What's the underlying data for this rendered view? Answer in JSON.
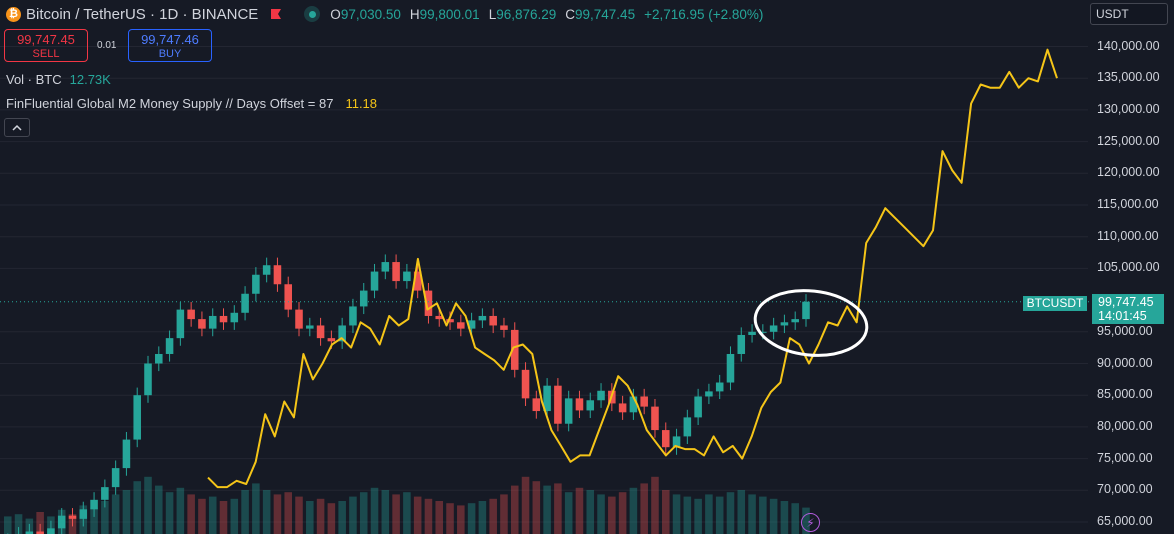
{
  "header": {
    "symbol": "Bitcoin / TetherUS · 1D · BINANCE",
    "open_label": "O",
    "open": "97,030.50",
    "high_label": "H",
    "high": "99,800.01",
    "low_label": "L",
    "low": "96,876.29",
    "close_label": "C",
    "close": "99,747.45",
    "change": "+2,716.95 (+2.80%)"
  },
  "trade": {
    "sell_price": "99,747.45",
    "sell_label": "SELL",
    "spread": "0.01",
    "buy_price": "99,747.46",
    "buy_label": "BUY"
  },
  "legend": {
    "volume_label": "Vol · BTC",
    "volume_value": "12.73K",
    "indicator_label": "FinFluential Global M2 Money Supply // Days Offset = 87",
    "indicator_value": "11.18",
    "collapse_icon": "chevron-up-icon"
  },
  "currency": "USDT",
  "price_scale": [
    "140,000.00",
    "135,000.00",
    "130,000.00",
    "125,000.00",
    "120,000.00",
    "115,000.00",
    "110,000.00",
    "105,000.00",
    "95,000.00",
    "90,000.00",
    "85,000.00",
    "80,000.00",
    "75,000.00",
    "70,000.00",
    "65,000.00"
  ],
  "last_price": {
    "symbol": "BTCUSDT",
    "price": "99,747.45",
    "countdown": "14:01:45"
  },
  "colors": {
    "up": "#26a69a",
    "down": "#ef5350",
    "m2_line": "#f5c518",
    "background": "#161a25",
    "annotation": "#ffffff"
  },
  "chart_data": {
    "type": "line",
    "title": "Bitcoin / TetherUS · 1D · BINANCE",
    "xlabel": "",
    "ylabel": "",
    "ylim": [
      64000,
      142000
    ],
    "grid": true,
    "series": [
      {
        "name": "BTCUSDT",
        "kind": "candlestick-close",
        "values": [
          62000,
          63000,
          63500,
          62800,
          64000,
          66000,
          65500,
          67000,
          68500,
          70500,
          73500,
          78000,
          85000,
          90000,
          91500,
          94000,
          98500,
          97000,
          95500,
          97500,
          96500,
          98000,
          101000,
          104000,
          105500,
          102500,
          98500,
          95500,
          96000,
          94000,
          93500,
          96000,
          99000,
          101500,
          104500,
          106000,
          103000,
          104500,
          101500,
          97500,
          97000,
          96500,
          95500,
          96800,
          97500,
          96000,
          95300,
          89000,
          84500,
          82500,
          86500,
          80500,
          84500,
          82600,
          84200,
          85700,
          83700,
          82300,
          84800,
          83200,
          79500,
          76800,
          78500,
          81500,
          84800,
          85600,
          87000,
          91500,
          94500,
          95000,
          95000,
          96000,
          96500,
          97000,
          99747.45
        ],
        "unit": "USDT"
      },
      {
        "name": "FinFluential Global M2 Money Supply // Days Offset = 87",
        "kind": "line",
        "values": [
          72000,
          70500,
          70500,
          71500,
          71000,
          74500,
          82000,
          78500,
          84000,
          81500,
          91500,
          87500,
          90000,
          93000,
          94000,
          92500,
          96500,
          95500,
          93000,
          97500,
          96000,
          97000,
          106500,
          98500,
          99500,
          96000,
          99500,
          97500,
          92500,
          91500,
          90500,
          89000,
          92500,
          93000,
          91500,
          84000,
          79500,
          77000,
          74500,
          75500,
          75500,
          79500,
          83500,
          88000,
          86500,
          83500,
          79500,
          77500,
          75500,
          77000,
          76500,
          76500,
          75500,
          78500,
          76000,
          77000,
          75000,
          78500,
          83000,
          85500,
          87000,
          94000,
          93000,
          90000,
          93000,
          96500,
          96000,
          99000,
          96500,
          109000,
          111500,
          114500,
          113000,
          111500,
          110000,
          108500,
          111000,
          123500,
          120500,
          118500,
          131000,
          134000,
          133500,
          133500,
          136000,
          133500,
          135000,
          134500,
          139500,
          135000
        ],
        "unit": "USDT"
      },
      {
        "name": "Volume",
        "kind": "histogram",
        "values": [
          0.8,
          0.9,
          0.7,
          1.0,
          0.8,
          1.1,
          0.9,
          1.3,
          1.2,
          1.5,
          1.8,
          2.0,
          2.4,
          2.6,
          2.2,
          1.9,
          2.1,
          1.8,
          1.6,
          1.7,
          1.5,
          1.6,
          2.0,
          2.3,
          2.0,
          1.8,
          1.9,
          1.7,
          1.5,
          1.6,
          1.4,
          1.5,
          1.7,
          1.9,
          2.1,
          2.0,
          1.8,
          1.9,
          1.7,
          1.6,
          1.5,
          1.4,
          1.3,
          1.4,
          1.5,
          1.6,
          1.8,
          2.2,
          2.6,
          2.4,
          2.2,
          2.3,
          1.9,
          2.1,
          2.0,
          1.8,
          1.7,
          1.9,
          2.1,
          2.3,
          2.6,
          2.0,
          1.8,
          1.7,
          1.6,
          1.8,
          1.7,
          1.9,
          2.0,
          1.8,
          1.7,
          1.6,
          1.5,
          1.4,
          1.2
        ],
        "unit": "BTC"
      }
    ]
  }
}
